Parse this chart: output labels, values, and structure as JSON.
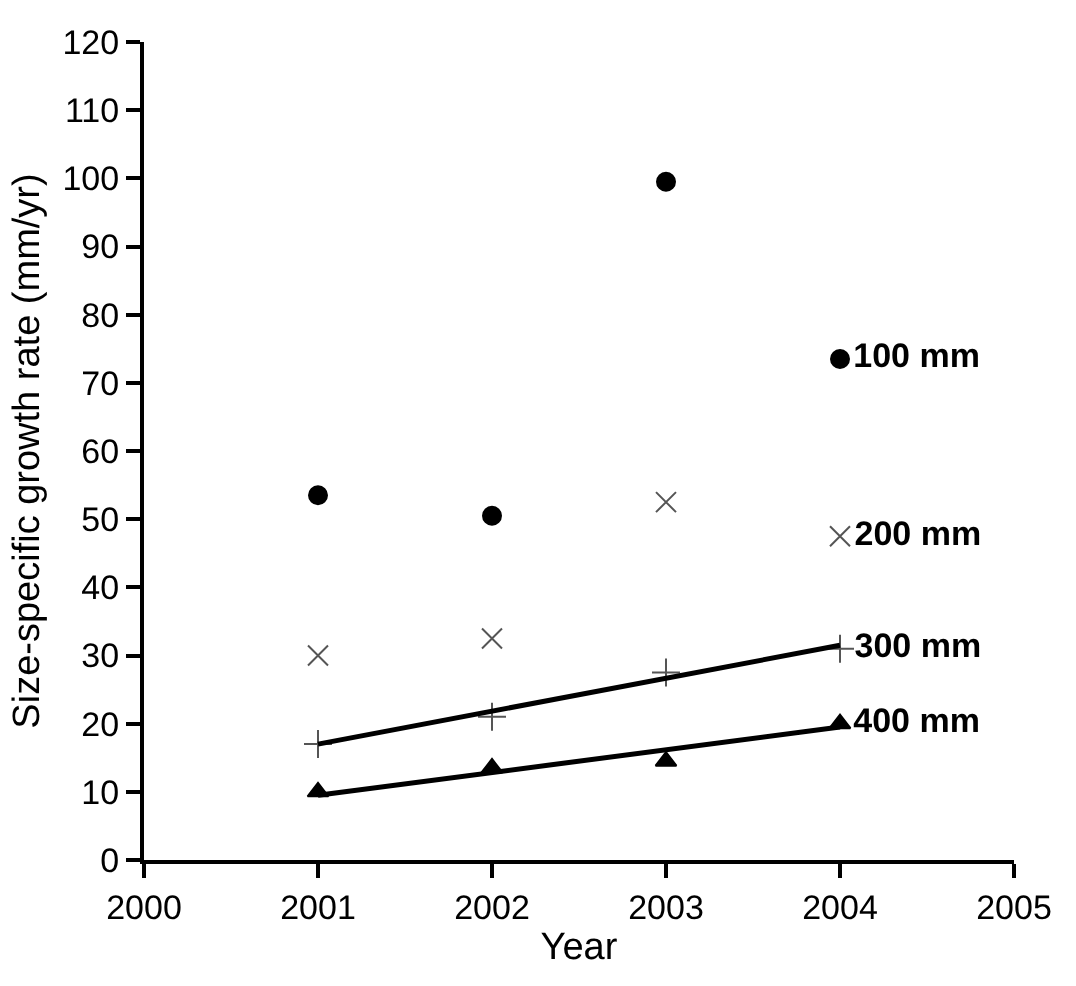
{
  "chart_data": {
    "type": "scatter",
    "xlabel": "Year",
    "ylabel": "Size-specific growth rate (mm/yr)",
    "x": [
      2001,
      2002,
      2003,
      2004
    ],
    "series": [
      {
        "name": "100 mm",
        "color": "#000000",
        "marker": "circle",
        "values": [
          53.5,
          50.5,
          99.5,
          73.5
        ]
      },
      {
        "name": "200 mm",
        "color": "#555555",
        "marker": "x",
        "values": [
          30,
          32.5,
          52.5,
          47.5
        ]
      },
      {
        "name": "300 mm",
        "color": "#555555",
        "marker": "cross",
        "values": [
          17,
          21,
          27.5,
          31
        ]
      },
      {
        "name": "400 mm",
        "color": "#000000",
        "marker": "triangle",
        "values": [
          10,
          13.5,
          14.5,
          20
        ]
      },
      {
        "type": "line",
        "color": "#000000",
        "marker": "none",
        "values": [
          17,
          null,
          null,
          31.5
        ]
      },
      {
        "type": "line",
        "color": "#000000",
        "marker": "none",
        "values": [
          9.5,
          null,
          null,
          19.5
        ]
      }
    ],
    "xlim": [
      2000,
      2005
    ],
    "xticks": [
      2000,
      2001,
      2002,
      2003,
      2004,
      2005
    ],
    "ylim": [
      0,
      120
    ],
    "yticks": [
      0,
      10,
      20,
      30,
      40,
      50,
      60,
      70,
      80,
      90,
      100,
      110,
      120
    ],
    "grid": false,
    "legend": false
  }
}
